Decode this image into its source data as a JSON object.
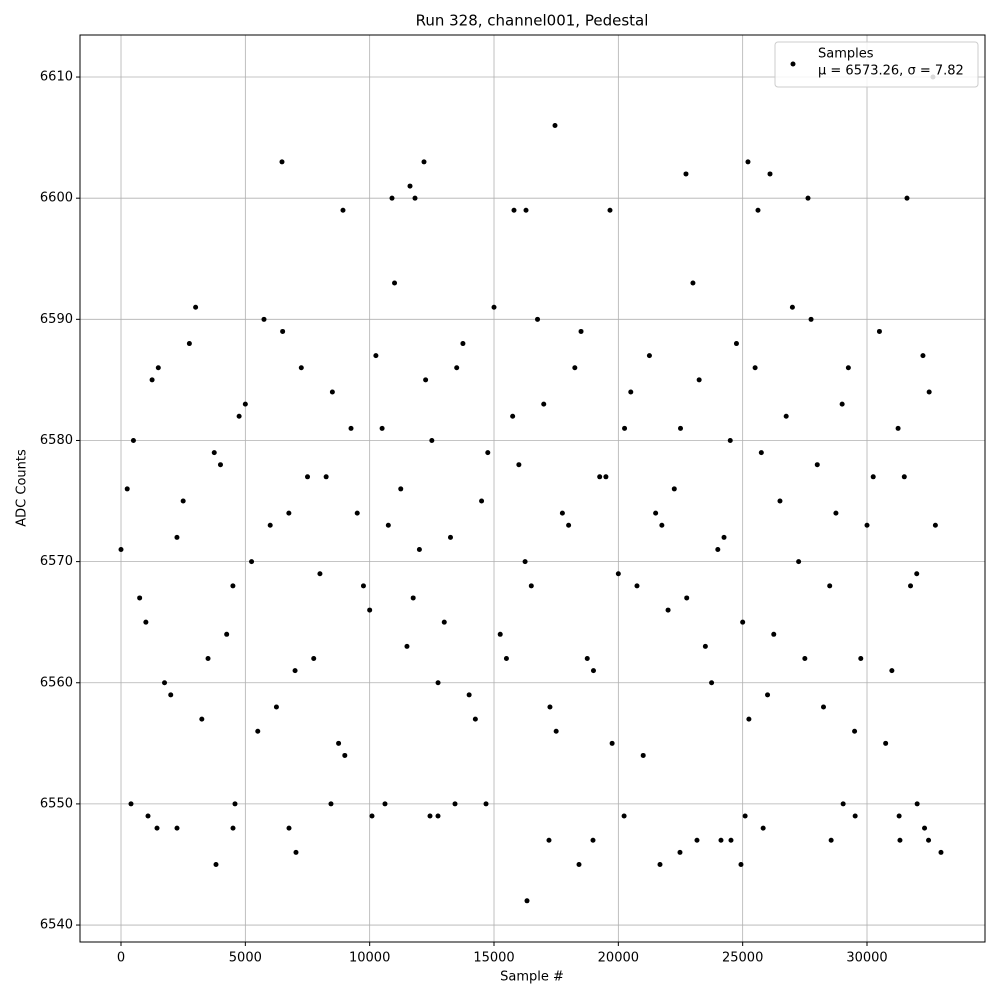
{
  "chart_data": {
    "type": "scatter",
    "title": "Run 328, channel001, Pedestal",
    "xlabel": "Sample #",
    "ylabel": "ADC Counts",
    "annotation": "μ = 6573.26, σ = 7.82",
    "xlim": [
      -1649,
      34745
    ],
    "ylim": [
      6538.6,
      6613.47
    ],
    "xticks": [
      0,
      5000,
      10000,
      15000,
      20000,
      25000,
      30000
    ],
    "yticks": [
      6540,
      6550,
      6560,
      6570,
      6580,
      6590,
      6600,
      6610
    ],
    "grid": true,
    "legend": "upper right",
    "series": [
      {
        "name": "Samples",
        "color": "#000000",
        "x": [
          16327,
          17453,
          6474,
          12185,
          25213,
          22720,
          26099,
          11622,
          32652,
          3820,
          18418,
          21675,
          24932,
          32975,
          7037,
          22479,
          10898,
          11823,
          27627,
          31608,
          8927,
          19664,
          15804,
          16287,
          25616,
          402,
          1086,
          1448,
          2252,
          4504,
          6756,
          4584,
          10093,
          8444,
          10616,
          12426,
          12748,
          13432,
          14679,
          17211,
          18981,
          20232,
          25099,
          29041,
          28558,
          29524,
          31292,
          32017,
          32475,
          32314,
          25824,
          23163,
          24128,
          24530,
          31325,
          0,
          500,
          1000,
          1500,
          2000,
          2500,
          3000,
          3500,
          4000,
          4500,
          5000,
          5500,
          6000,
          6500,
          7000,
          7500,
          8000,
          8500,
          9000,
          9500,
          10000,
          10500,
          11000,
          11500,
          12000,
          12500,
          13000,
          13500,
          14000,
          14500,
          15000,
          15500,
          16000,
          16500,
          17000,
          17500,
          18000,
          18500,
          19000,
          19500,
          20000,
          20500,
          21000,
          21500,
          22000,
          22500,
          23000,
          23500,
          24000,
          24500,
          25000,
          25500,
          26000,
          26500,
          27000,
          27500,
          28000,
          28500,
          29000,
          29500,
          30000,
          30500,
          31000,
          31500,
          32000,
          32500,
          250,
          750,
          1250,
          1750,
          2250,
          2750,
          3250,
          3750,
          4250,
          4750,
          5250,
          5750,
          6250,
          6750,
          7250,
          7750,
          8250,
          8750,
          9250,
          9750,
          10250,
          10750,
          11250,
          11750,
          12250,
          12750,
          13250,
          13750,
          14250,
          14750,
          15250,
          15750,
          16250,
          16750,
          17250,
          17750,
          18250,
          18750,
          19250,
          19750,
          20250,
          20750,
          21250,
          21750,
          22250,
          22750,
          23250,
          23750,
          24250,
          24750,
          25250,
          25750,
          26250,
          26750,
          27250,
          27750,
          28250,
          28750,
          29250,
          29750,
          30250,
          30750,
          31250,
          31750,
          32250,
          32750
        ],
        "y": [
          6542,
          6606,
          6603,
          6603,
          6603,
          6602,
          6602,
          6601,
          6610,
          6545,
          6545,
          6545,
          6545,
          6546,
          6546,
          6546,
          6600,
          6600,
          6600,
          6600,
          6599,
          6599,
          6599,
          6599,
          6599,
          6550,
          6549,
          6548,
          6548,
          6548,
          6548,
          6550,
          6549,
          6550,
          6550,
          6549,
          6549,
          6550,
          6550,
          6547,
          6547,
          6549,
          6549,
          6550,
          6547,
          6549,
          6549,
          6550,
          6547,
          6548,
          6548,
          6547,
          6547,
          6547,
          6547,
          6571,
          6580,
          6565,
          6586,
          6559,
          6575,
          6591,
          6562,
          6578,
          6568,
          6583,
          6556,
          6573,
          6589,
          6561,
          6577,
          6569,
          6584,
          6554,
          6574,
          6566,
          6581,
          6593,
          6563,
          6571,
          6580,
          6565,
          6586,
          6559,
          6575,
          6591,
          6562,
          6578,
          6568,
          6583,
          6556,
          6573,
          6589,
          6561,
          6577,
          6569,
          6584,
          6554,
          6574,
          6566,
          6581,
          6593,
          6563,
          6571,
          6580,
          6565,
          6586,
          6559,
          6575,
          6591,
          6562,
          6578,
          6568,
          6583,
          6556,
          6573,
          6589,
          6561,
          6577,
          6569,
          6584,
          6576,
          6567,
          6585,
          6560,
          6572,
          6588,
          6557,
          6579,
          6564,
          6582,
          6570,
          6590,
          6558,
          6574,
          6586,
          6562,
          6577,
          6555,
          6581,
          6568,
          6587,
          6573,
          6576,
          6567,
          6585,
          6560,
          6572,
          6588,
          6557,
          6579,
          6564,
          6582,
          6570,
          6590,
          6558,
          6574,
          6586,
          6562,
          6577,
          6555,
          6581,
          6568,
          6587,
          6573,
          6576,
          6567,
          6585,
          6560,
          6572,
          6588,
          6557,
          6579,
          6564,
          6582,
          6570,
          6590,
          6558,
          6574,
          6586,
          6562,
          6577,
          6555,
          6581,
          6568,
          6587,
          6573
        ]
      }
    ]
  }
}
